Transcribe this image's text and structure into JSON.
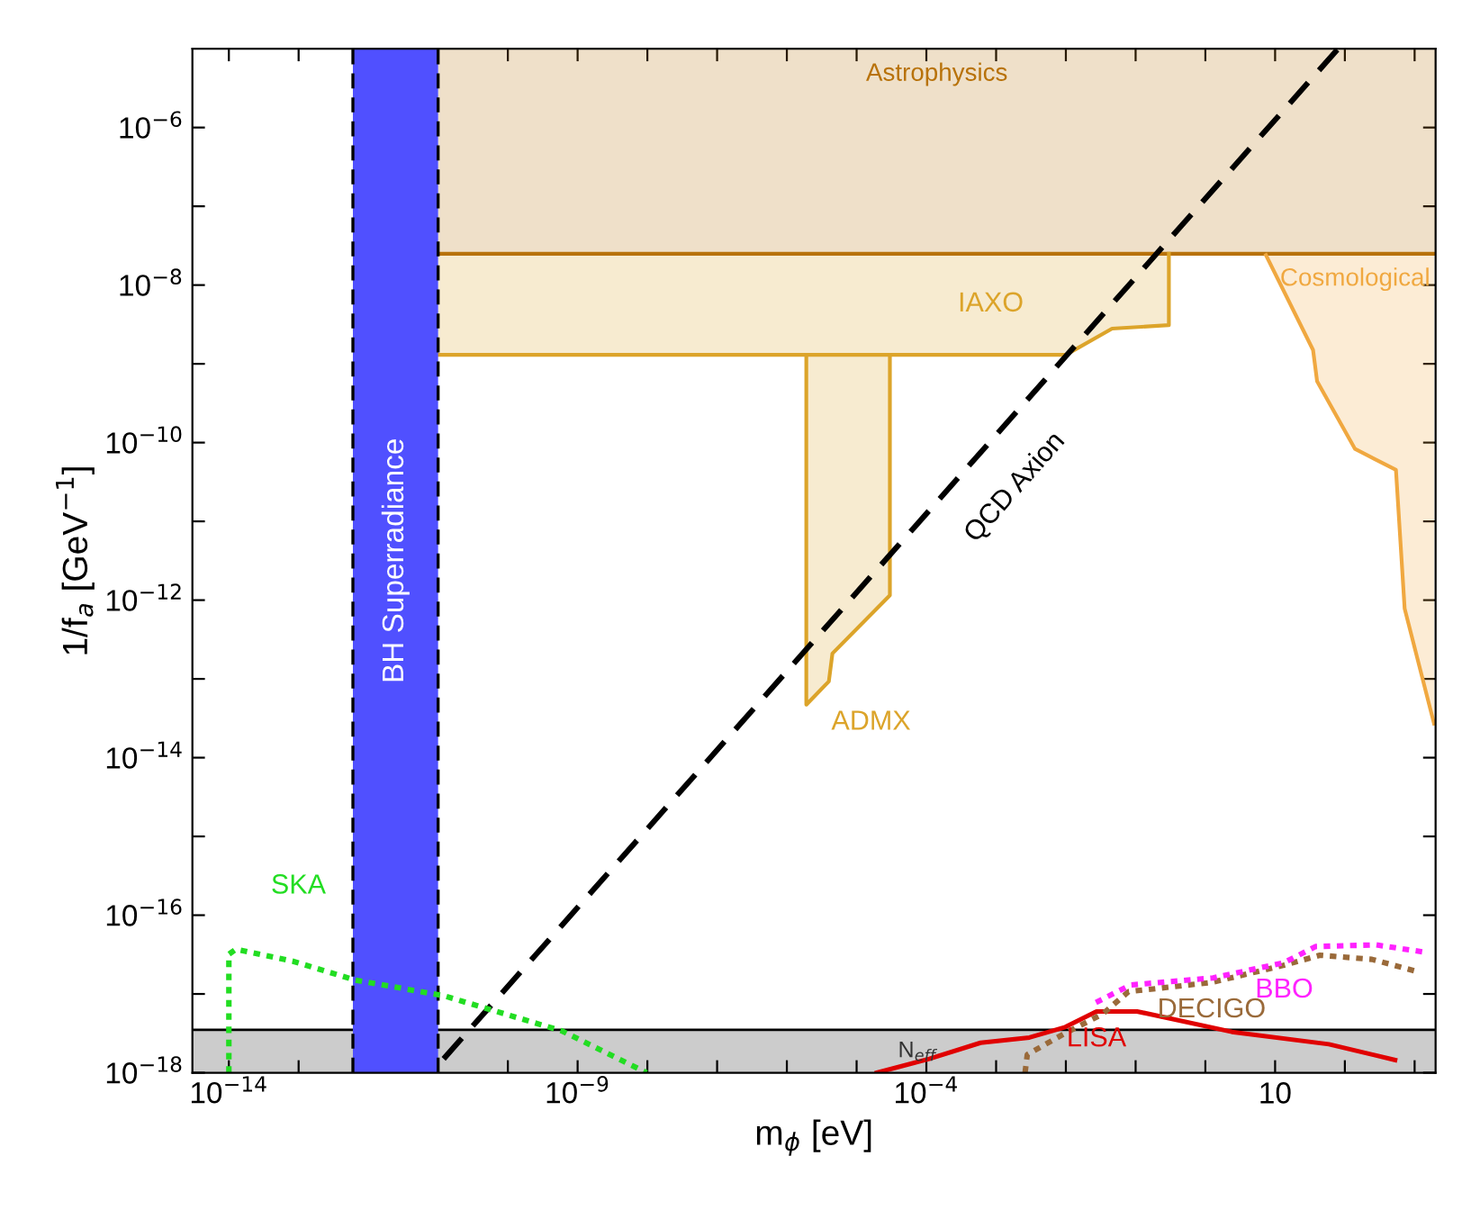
{
  "chart_data": {
    "type": "line",
    "xlabel": "m$_{ϕ}$ [eV]",
    "ylabel": "1/f$_{a}$ [GeV$^{−1}$]",
    "log": "xy",
    "xlim": [
      3e-15,
      2000
    ],
    "ylim": [
      1e-18,
      1e-05
    ],
    "xticks": [
      {
        "value": 1e-14,
        "label": "10$^{−14}$"
      },
      {
        "value": 1e-13,
        "label": null
      },
      {
        "value": 1e-12,
        "label": null
      },
      {
        "value": 1e-11,
        "label": null
      },
      {
        "value": 1e-10,
        "label": null
      },
      {
        "value": 1e-09,
        "label": "10$^{−9}$"
      },
      {
        "value": 1e-08,
        "label": null
      },
      {
        "value": 1e-07,
        "label": null
      },
      {
        "value": 1e-06,
        "label": null
      },
      {
        "value": 1e-05,
        "label": null
      },
      {
        "value": 0.0001,
        "label": "10$^{−4}$"
      },
      {
        "value": 0.001,
        "label": null
      },
      {
        "value": 0.01,
        "label": null
      },
      {
        "value": 0.1,
        "label": null
      },
      {
        "value": 1,
        "label": null
      },
      {
        "value": 10,
        "label": "10"
      },
      {
        "value": 100,
        "label": null
      },
      {
        "value": 1000,
        "label": null
      }
    ],
    "yticks": [
      {
        "value": 1e-18,
        "label": "10$^{−18}$"
      },
      {
        "value": 1e-17,
        "label": null
      },
      {
        "value": 1e-16,
        "label": "10$^{−16}$"
      },
      {
        "value": 1e-15,
        "label": null
      },
      {
        "value": 1e-14,
        "label": "10$^{−14}$"
      },
      {
        "value": 1e-13,
        "label": null
      },
      {
        "value": 1e-12,
        "label": "10$^{−12}$"
      },
      {
        "value": 1e-11,
        "label": null
      },
      {
        "value": 1e-10,
        "label": "10$^{−10}$"
      },
      {
        "value": 1e-09,
        "label": null
      },
      {
        "value": 1e-08,
        "label": "10$^{−8}$"
      },
      {
        "value": 1e-07,
        "label": null
      },
      {
        "value": 1e-06,
        "label": "10$^{−6}$"
      }
    ],
    "bands": [
      {
        "axis": "x",
        "from": 6e-13,
        "to": 1e-11,
        "label": "BH Superradiance",
        "color": "#5050ff"
      },
      {
        "axis": "y",
        "from": 1e-18,
        "to": 3.5e-18,
        "label": "N$_{eff}$",
        "color": "#cccccc"
      }
    ],
    "ref_lines": [
      {
        "axis": "x",
        "value": 6e-13,
        "color": "#000000",
        "line_style": "dashed"
      },
      {
        "axis": "x",
        "value": 1e-11,
        "color": "#000000",
        "line_style": "dashed"
      },
      {
        "axis": "y",
        "value": 3.5e-18,
        "color": "#000000",
        "line_style": "solid"
      }
    ],
    "series": [
      {
        "name": "Astrophysics",
        "color": "#b8720a",
        "x": [
          1e-11,
          2000
        ],
        "values": [
          2.5e-08,
          2.5e-08
        ],
        "lower": [
          2.5e-08,
          2.5e-08
        ],
        "upper": [
          1e-05,
          1e-05
        ]
      },
      {
        "name": "IAXO",
        "color": "#dca42a",
        "x": [
          1e-11,
          0.01,
          0.046,
          0.3,
          0.3
        ],
        "values": [
          1.3e-09,
          1.3e-09,
          2.8e-09,
          3.1e-09,
          2.5e-08
        ],
        "lower": [
          1.3e-09,
          1.3e-09,
          2.8e-09,
          3.1e-09,
          2.5e-08
        ],
        "upper": [
          2.5e-08,
          2.5e-08,
          2.5e-08,
          2.5e-08,
          2.5e-08
        ]
      },
      {
        "name": "ADMX",
        "color": "#dca42a",
        "x": [
          1.9e-06,
          1.9e-06,
          4e-06,
          4.5e-06,
          3e-05,
          3e-05
        ],
        "values": [
          1.3e-09,
          4.7e-14,
          9.3e-14,
          2.1e-13,
          1.15e-12,
          1.3e-09
        ],
        "lower": [
          1.3e-09,
          4.7e-14,
          9.3e-14,
          2.1e-13,
          1.15e-12,
          1.3e-09
        ],
        "upper": [
          1.3e-09,
          1.3e-09,
          1.3e-09,
          1.3e-09,
          1.3e-09,
          1.3e-09
        ]
      },
      {
        "name": "Cosmological",
        "color": "#f0a840",
        "x": [
          7.4,
          35,
          40,
          140,
          540,
          720,
          1900
        ],
        "values": [
          2.4e-08,
          1.5e-09,
          6e-10,
          8.3e-11,
          4.5e-11,
          7.8e-13,
          2.7e-14
        ],
        "lower": [
          2.4e-08,
          1.5e-09,
          6e-10,
          8.3e-11,
          4.5e-11,
          7.8e-13,
          2.7e-14
        ],
        "upper": [
          2.5e-08,
          2.5e-08,
          2.5e-08,
          2.5e-08,
          2.5e-08,
          2.5e-08,
          2.5e-08
        ]
      },
      {
        "name": "QCD Axion",
        "color": "#000000",
        "line_style": "dashed",
        "x": [
          1.2e-11,
          80
        ],
        "values": [
          1.5e-18,
          1e-05
        ]
      },
      {
        "name": "SKA",
        "color": "#22dd22",
        "line_style": "dotted",
        "x": [
          1e-14,
          1e-14,
          1.26e-14,
          8.3e-14,
          6.5e-13,
          1.2e-11,
          5.9e-10,
          9.8e-09
        ],
        "values": [
          1e-18,
          3.2e-17,
          3.7e-17,
          2.6e-17,
          1.5e-17,
          9.5e-18,
          3.4e-18,
          1e-18
        ]
      },
      {
        "name": "LISA",
        "color": "#e00000",
        "line_style": "solid",
        "x": [
          1.95e-05,
          0.00011,
          0.0006,
          0.003,
          0.0098,
          0.0275,
          0.105,
          2.4,
          59,
          525
        ],
        "values": [
          1e-18,
          1.5e-18,
          2.4e-18,
          2.8e-18,
          3.8e-18,
          6e-18,
          6e-18,
          3.3e-18,
          2.3e-18,
          1.45e-18
        ]
      },
      {
        "name": "DECIGO",
        "color": "#9a6a3a",
        "line_style": "dotted",
        "x": [
          0.0026,
          0.0028,
          0.0093,
          0.034,
          0.079,
          1.23,
          13,
          44,
          245,
          1150
        ],
        "values": [
          1e-18,
          1.7e-18,
          3.1e-18,
          5.6e-18,
          1.07e-17,
          1.4e-17,
          2.3e-17,
          3.1e-17,
          2.75e-17,
          1.9e-17
        ]
      },
      {
        "name": "BBO",
        "color": "#ff22ff",
        "line_style": "dotted",
        "x": [
          0.027,
          0.085,
          1.29,
          13.5,
          38,
          280,
          1380
        ],
        "values": [
          7.8e-18,
          1.3e-17,
          1.6e-17,
          2.5e-17,
          4e-17,
          4.2e-17,
          3.4e-17
        ]
      }
    ]
  }
}
